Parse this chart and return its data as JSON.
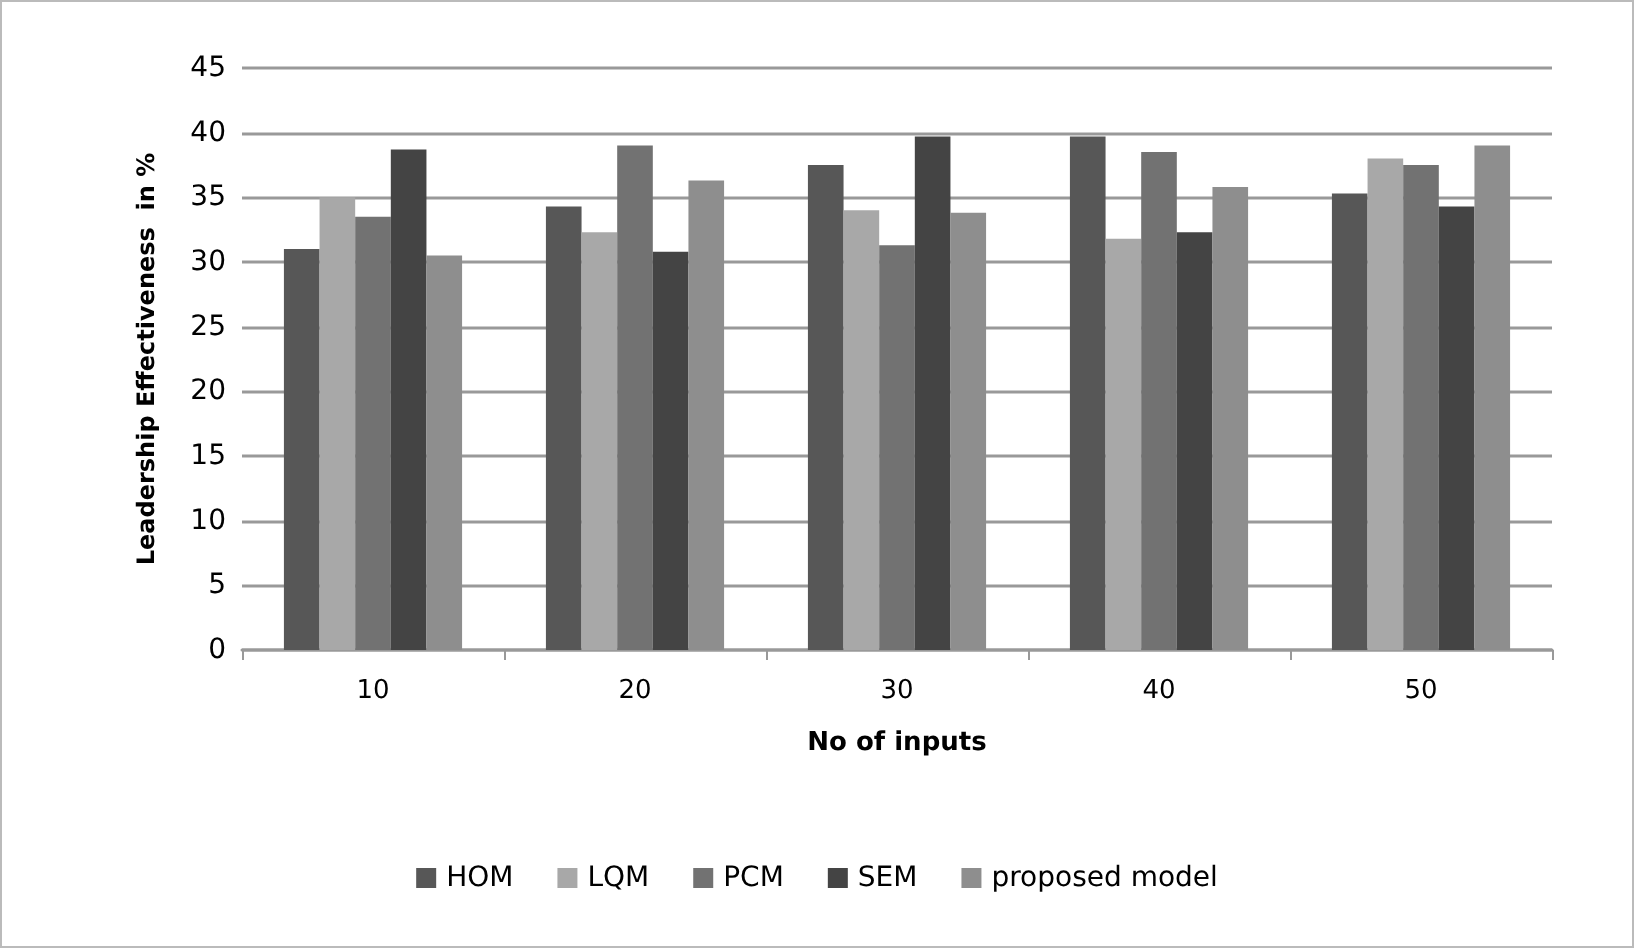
{
  "chart_data": {
    "type": "bar",
    "xlabel": "No of inputs",
    "ylabel": "Leadership Effectiveness  in %",
    "categories": [
      "10",
      "20",
      "30",
      "40",
      "50"
    ],
    "series": [
      {
        "name": "HOM",
        "color": "#575757",
        "values": [
          31,
          34.3,
          37.5,
          39.7,
          35.3
        ]
      },
      {
        "name": "LQM",
        "color": "#a8a8a8",
        "values": [
          35,
          32.3,
          34,
          31.8,
          38
        ]
      },
      {
        "name": "PCM",
        "color": "#727272",
        "values": [
          33.5,
          39,
          31.3,
          38.5,
          37.5
        ]
      },
      {
        "name": "SEM",
        "color": "#444444",
        "values": [
          38.7,
          30.8,
          39.7,
          32.3,
          34.3
        ]
      },
      {
        "name": "proposed model",
        "color": "#8e8e8e",
        "values": [
          30.5,
          36.3,
          33.8,
          35.8,
          39
        ]
      }
    ],
    "ylim": [
      0,
      45
    ],
    "yticks": [
      0,
      5,
      10,
      15,
      20,
      25,
      30,
      35,
      40,
      45
    ],
    "grid": "y",
    "legend": "bottom"
  }
}
